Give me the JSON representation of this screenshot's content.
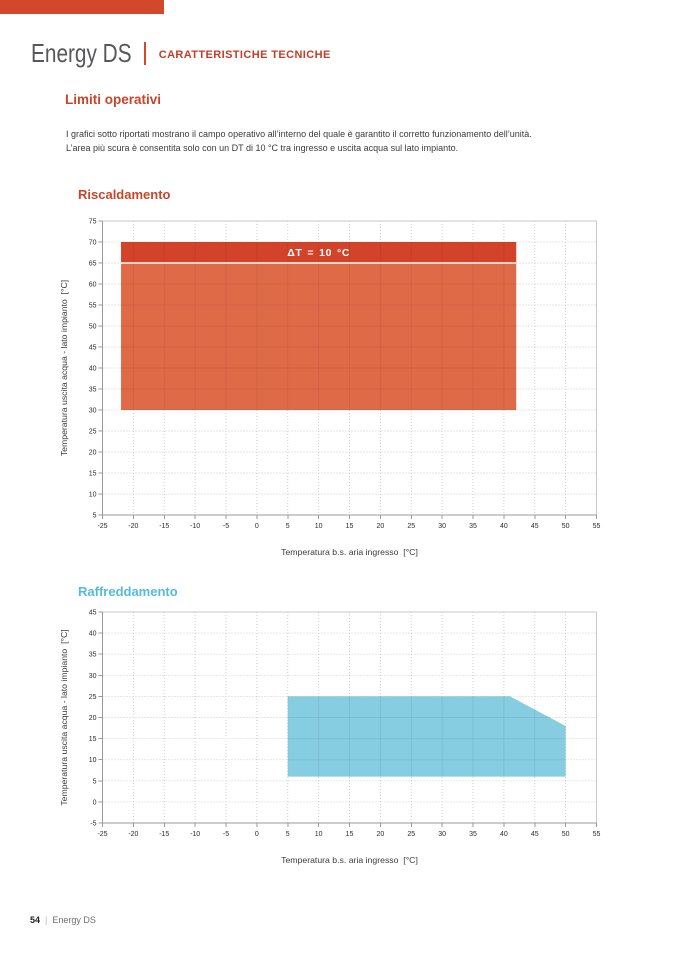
{
  "page": {
    "header": {
      "brand": "Energy DS",
      "section": "CARATTERISTICHE TECNICHE"
    },
    "intro": {
      "title": "Limiti operativi",
      "line1": "I grafici sotto riportati mostrano il campo operativo all’interno del quale è garantito il corretto funzionamento dell’unità.",
      "line2": "L’area più scura è consentita solo con un DT di 10 °C tra ingresso e uscita acqua sul lato impianto."
    },
    "footer": {
      "page_number": "54",
      "separator": "|",
      "brand": "Energy DS"
    }
  },
  "colors": {
    "brand_red": "#D3472B",
    "heading_red": "#C7452A",
    "heading_blue": "#55BBD9",
    "heating_area": "#DF6A48",
    "heating_dt_band": "#D2432A",
    "cooling_area": "#86CDE2"
  },
  "chart_data": [
    {
      "id": "riscaldamento",
      "type": "area",
      "title": "Riscaldamento",
      "xlabel": "Temperatura b.s. aria ingresso  [°C]",
      "ylabel": "Temperatura uscita acqua - lato impianto  [°C]",
      "xlim": [
        -25,
        55
      ],
      "ylim": [
        5,
        75
      ],
      "x_ticks": [
        -25,
        -20,
        -15,
        -10,
        -5,
        0,
        5,
        10,
        15,
        20,
        25,
        30,
        35,
        40,
        45,
        50,
        55
      ],
      "y_ticks": [
        5,
        10,
        15,
        20,
        25,
        30,
        35,
        40,
        45,
        50,
        55,
        60,
        65,
        70,
        75
      ],
      "grid": true,
      "legend": "none",
      "regions": [
        {
          "name": "heating-operating-envelope",
          "color": "#DF6A48",
          "points": [
            [
              -22,
              30
            ],
            [
              42,
              30
            ],
            [
              42,
              65
            ],
            [
              -22,
              65
            ]
          ]
        },
        {
          "name": "heating-dt10-band",
          "color": "#D2432A",
          "points": [
            [
              -22,
              65
            ],
            [
              42,
              65
            ],
            [
              42,
              70
            ],
            [
              -22,
              70
            ]
          ]
        }
      ],
      "boundary_lines": [
        {
          "name": "dt10-divider",
          "from": [
            -22,
            65
          ],
          "to": [
            42,
            65
          ],
          "color": "#FFFFFF",
          "width": 1.4
        }
      ],
      "annotations": [
        {
          "text": "ΔT = 10 °C",
          "x": 10,
          "y": 67.5,
          "color": "#FFFFFF"
        }
      ]
    },
    {
      "id": "raffreddamento",
      "type": "area",
      "title": "Raffreddamento",
      "xlabel": "Temperatura b.s. aria ingresso  [°C]",
      "ylabel": "Temperatura uscita acqua - lato impianto  [°C]",
      "xlim": [
        -25,
        55
      ],
      "ylim": [
        -5,
        45
      ],
      "x_ticks": [
        -25,
        -20,
        -15,
        -10,
        -5,
        0,
        5,
        10,
        15,
        20,
        25,
        30,
        35,
        40,
        45,
        50,
        55
      ],
      "y_ticks": [
        -5,
        0,
        5,
        10,
        15,
        20,
        25,
        30,
        35,
        40,
        45
      ],
      "grid": true,
      "legend": "none",
      "regions": [
        {
          "name": "cooling-operating-envelope",
          "color": "#86CDE2",
          "points": [
            [
              5,
              6
            ],
            [
              5,
              25
            ],
            [
              41,
              25
            ],
            [
              50,
              18
            ],
            [
              50,
              6
            ]
          ]
        }
      ],
      "boundary_lines": [],
      "annotations": []
    }
  ]
}
